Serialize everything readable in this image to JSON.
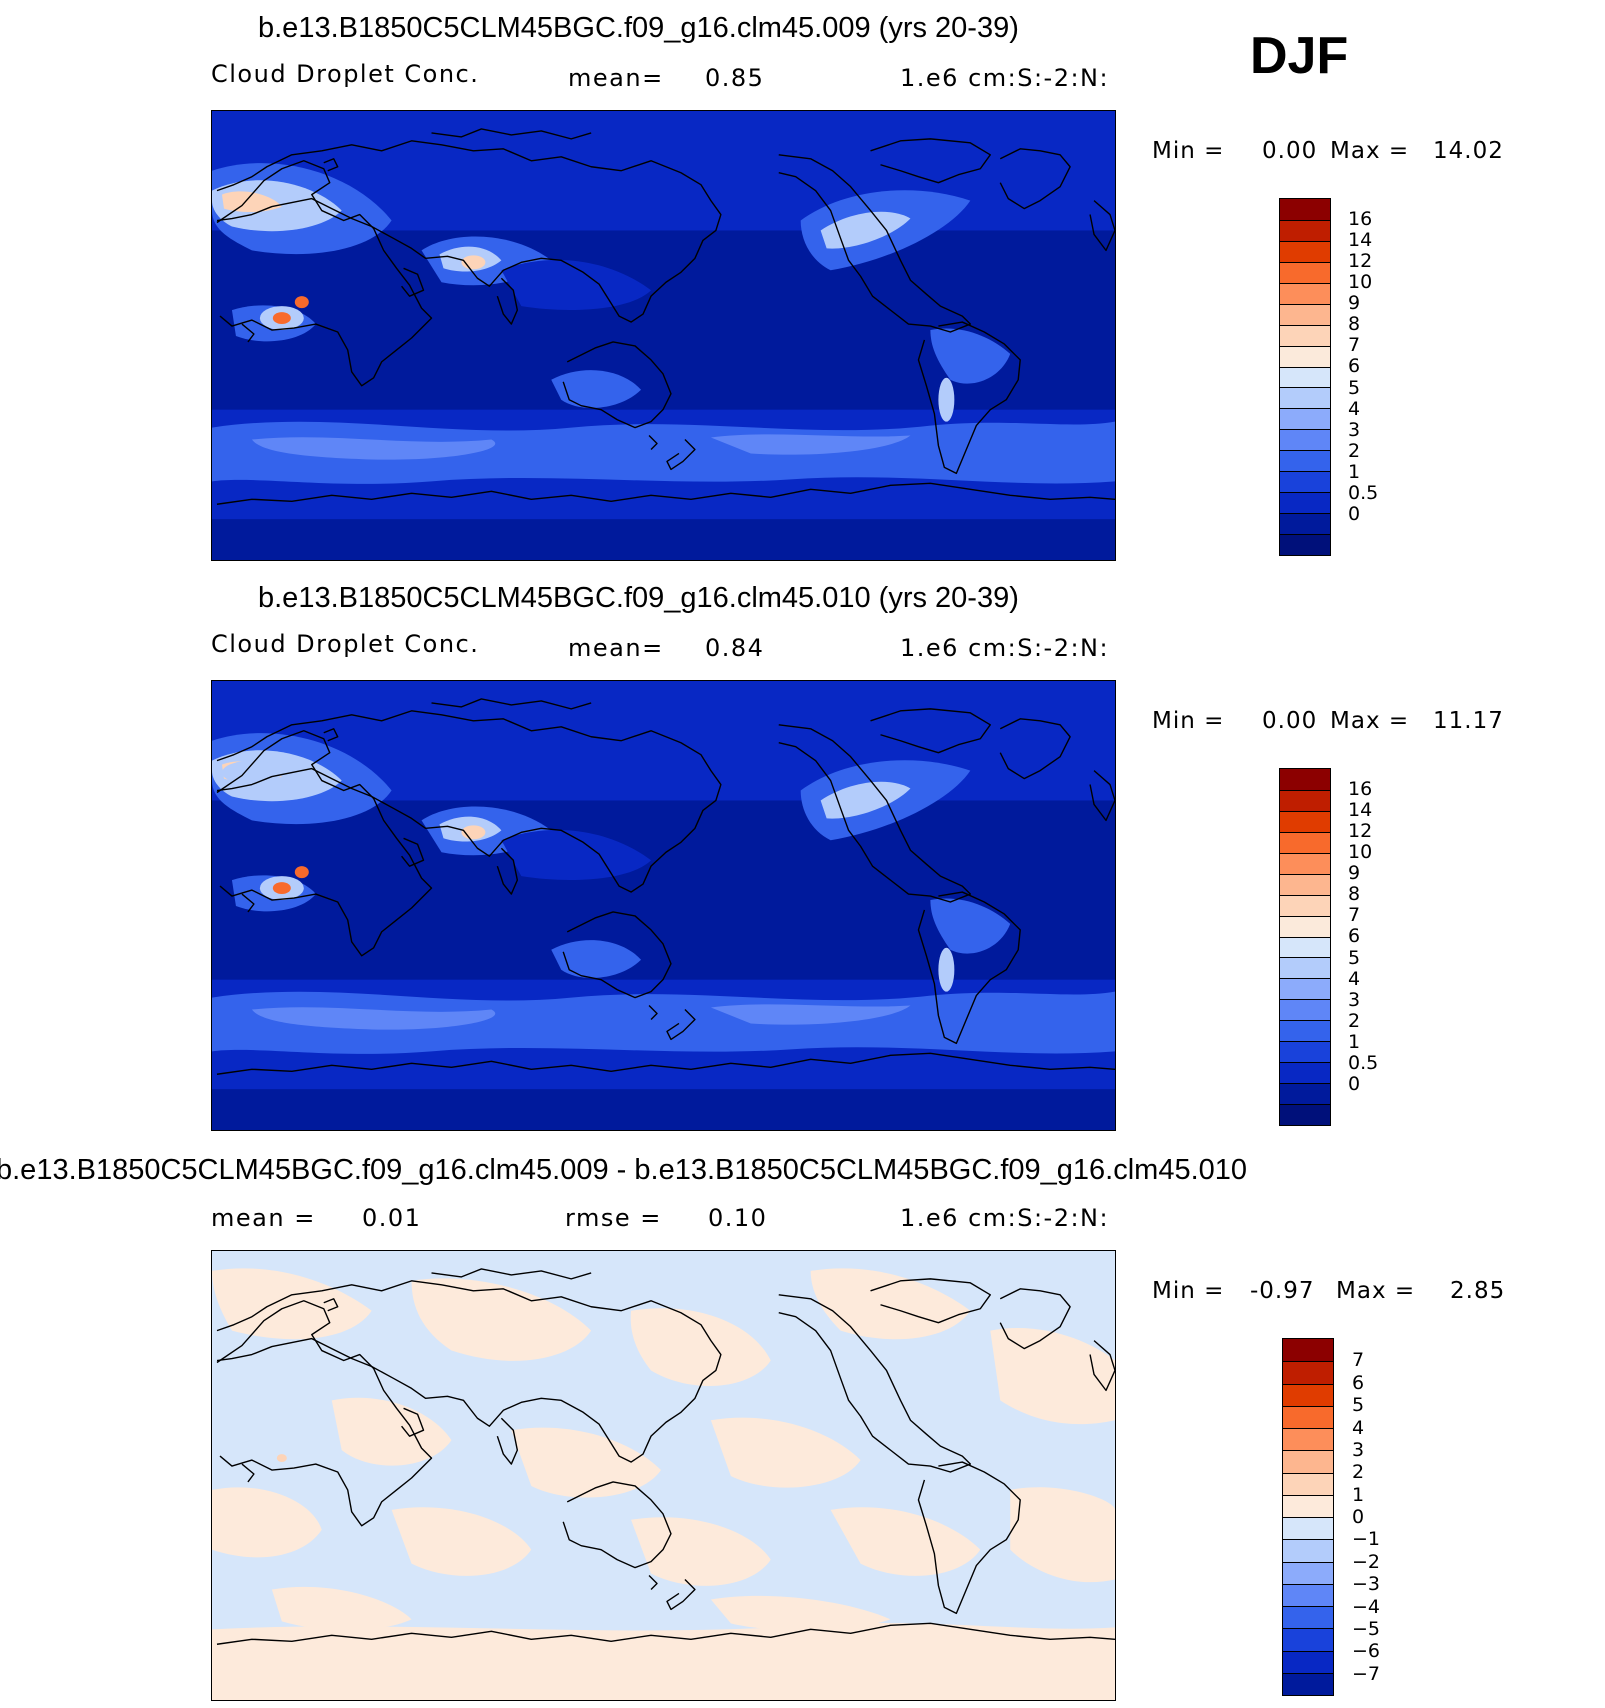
{
  "season": "DJF",
  "panels": [
    {
      "title": "b.e13.B1850C5CLM45BGC.f09_g16.clm45.009 (yrs 20-39)",
      "sub_left": "Cloud  Droplet  Conc.",
      "sub_mid_label": "mean=",
      "sub_mid_value": "0.85",
      "units": "1.e6  cm:S:-2:N:",
      "min_label": "Min  =",
      "min_value": "0.00",
      "max_label": "Max  =",
      "max_value": "14.02",
      "colorbar_labels": [
        "16",
        "14",
        "12",
        "10",
        "9",
        "8",
        "7",
        "6",
        "5",
        "4",
        "3",
        "2",
        "1",
        "0.5",
        "0"
      ],
      "colorbar_colors": [
        "#8c0000",
        "#bf1e00",
        "#e03c00",
        "#f86a2c",
        "#fd8e5a",
        "#fdb68f",
        "#fdd4b8",
        "#fbeadb",
        "#d6e6fa",
        "#b3ccfb",
        "#8cabfb",
        "#5f86f7",
        "#3463ec",
        "#1942db",
        "#0828c4",
        "#001a9c",
        "#00107a"
      ]
    },
    {
      "title": "b.e13.B1850C5CLM45BGC.f09_g16.clm45.010 (yrs 20-39)",
      "sub_left": "Cloud  Droplet  Conc.",
      "sub_mid_label": "mean=",
      "sub_mid_value": "0.84",
      "units": "1.e6  cm:S:-2:N:",
      "min_label": "Min  =",
      "min_value": "0.00",
      "max_label": "Max  =",
      "max_value": "11.17",
      "colorbar_labels": [
        "16",
        "14",
        "12",
        "10",
        "9",
        "8",
        "7",
        "6",
        "5",
        "4",
        "3",
        "2",
        "1",
        "0.5",
        "0"
      ],
      "colorbar_colors": [
        "#8c0000",
        "#bf1e00",
        "#e03c00",
        "#f86a2c",
        "#fd8e5a",
        "#fdb68f",
        "#fdd4b8",
        "#fbeadb",
        "#d6e6fa",
        "#b3ccfb",
        "#8cabfb",
        "#5f86f7",
        "#3463ec",
        "#1942db",
        "#0828c4",
        "#001a9c",
        "#00107a"
      ]
    },
    {
      "title": "b.e13.B1850C5CLM45BGC.f09_g16.clm45.009 - b.e13.B1850C5CLM45BGC.f09_g16.clm45.010",
      "sub_left_label": "mean  =",
      "sub_left_value": "0.01",
      "sub_mid_label": "rmse  =",
      "sub_mid_value": "0.10",
      "units": "1.e6  cm:S:-2:N:",
      "min_label": "Min  =",
      "min_value": "-0.97",
      "max_label": "Max  =",
      "max_value": "2.85",
      "colorbar_labels": [
        "7",
        "6",
        "5",
        "4",
        "3",
        "2",
        "1",
        "0",
        "-1",
        "-2",
        "-3",
        "-4",
        "-5",
        "-6",
        "-7"
      ],
      "colorbar_colors": [
        "#8c0000",
        "#bf1e00",
        "#e03c00",
        "#f86a2c",
        "#fd8e5a",
        "#fdb68f",
        "#fdd4b8",
        "#fdeadb",
        "#d6e6fa",
        "#b3ccfb",
        "#8cabfb",
        "#5f86f7",
        "#3463ec",
        "#1942db",
        "#0828c4",
        "#001a9c"
      ]
    }
  ],
  "colors": {
    "ocean_low": "#001a9c",
    "ocean_mid": "#0828c4",
    "band": "#3463ec",
    "band_light": "#5f86f7",
    "high_land": "#b3ccfb",
    "peak": "#fdd4b8",
    "hot": "#f86a2c",
    "diff_pos": "#fdeadb",
    "diff_neg": "#d6e6fa",
    "coast": "#000000"
  }
}
